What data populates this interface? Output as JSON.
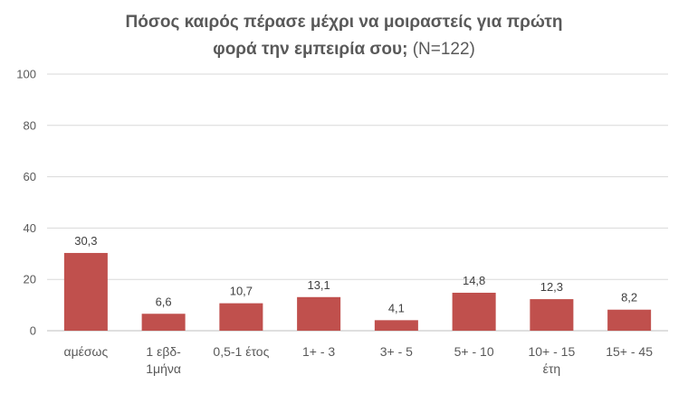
{
  "chart_data": {
    "type": "bar",
    "title_main": "Πόσος καιρός πέρασε μέχρι να μοιραστείς για πρώτη φορά την εμπειρία σου;",
    "title_line1": "Πόσος καιρός πέρασε μέχρι να μοιραστείς για πρώτη",
    "title_line2_bold": "φορά την εμπειρία σου;",
    "title_line2_rest": " (N=122)",
    "categories": [
      [
        "αμέσως"
      ],
      [
        "1 εβδ-",
        "1μήνα"
      ],
      [
        "0,5-1 έτος"
      ],
      [
        "1+ - 3"
      ],
      [
        "3+ - 5"
      ],
      [
        "5+ - 10"
      ],
      [
        "10+ - 15",
        "έτη"
      ],
      [
        "15+ -  45"
      ]
    ],
    "values": [
      30.3,
      6.6,
      10.7,
      13.1,
      4.1,
      14.8,
      12.3,
      8.2
    ],
    "data_labels": [
      "30,3",
      "6,6",
      "10,7",
      "13,1",
      "4,1",
      "14,8",
      "12,3",
      "8,2"
    ],
    "ylim": [
      0,
      100
    ],
    "yticks": [
      0,
      20,
      40,
      60,
      80,
      100
    ],
    "bar_color": "#C0504D",
    "grid": true
  }
}
